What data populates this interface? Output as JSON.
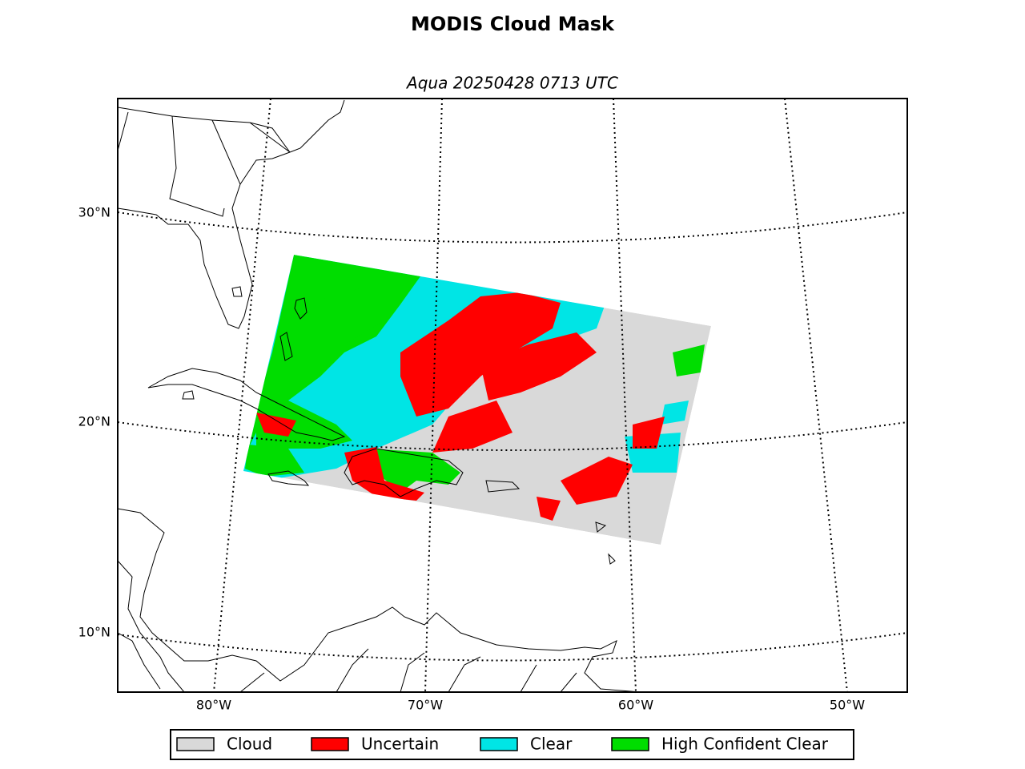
{
  "title": "MODIS Cloud Mask",
  "subtitle": "Aqua 20250428 0713 UTC",
  "latitude_labels": [
    "30°N",
    "20°N",
    "10°N"
  ],
  "longitude_labels": [
    "80°W",
    "70°W",
    "60°W",
    "50°W"
  ],
  "legend": [
    {
      "label": "Cloud",
      "color": "#d9d9d9"
    },
    {
      "label": "Uncertain",
      "color": "#ff0000"
    },
    {
      "label": "Clear",
      "color": "#00e5e5"
    },
    {
      "label": "High Confident Clear",
      "color": "#00dd00"
    }
  ]
}
